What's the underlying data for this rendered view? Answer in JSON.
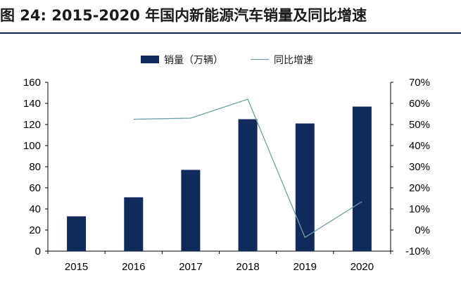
{
  "title": "图 24:  2015-2020 年国内新能源汽车销量及同比增速",
  "colors": {
    "bar": "#0f2a5b",
    "line": "#6f9ea8",
    "axis": "#000000",
    "title_rule": "#10224a"
  },
  "chart_data": {
    "type": "bar",
    "categories": [
      "2015",
      "2016",
      "2017",
      "2018",
      "2019",
      "2020"
    ],
    "series": [
      {
        "name": "销量（万辆）",
        "type": "bar",
        "axis": "left",
        "values": [
          33,
          51,
          77,
          125,
          121,
          137
        ]
      },
      {
        "name": "同比增速",
        "type": "line",
        "axis": "right",
        "values": [
          null,
          52.5,
          53,
          62,
          -3.5,
          13.5
        ]
      }
    ],
    "y_left": {
      "ylim": [
        0,
        160
      ],
      "ticks": [
        0,
        20,
        40,
        60,
        80,
        100,
        120,
        140,
        160
      ],
      "tick_labels": [
        "0",
        "20",
        "40",
        "60",
        "80",
        "100",
        "120",
        "140",
        "160"
      ]
    },
    "y_right": {
      "ylim": [
        -10,
        70
      ],
      "ticks": [
        -10,
        0,
        10,
        20,
        30,
        40,
        50,
        60,
        70
      ],
      "tick_labels": [
        "-10%",
        "0%",
        "10%",
        "20%",
        "30%",
        "40%",
        "50%",
        "60%",
        "70%"
      ]
    },
    "xlabel": "",
    "ylabel": "",
    "grid": false,
    "legend_position": "top-center"
  }
}
